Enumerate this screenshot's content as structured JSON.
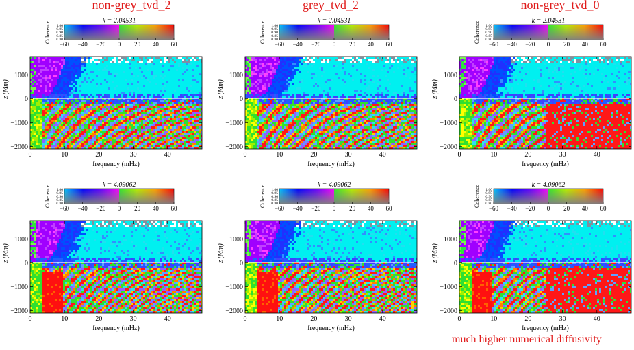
{
  "columns": [
    {
      "title": "non-grey_tvd_2"
    },
    {
      "title": "grey_tvd_2"
    },
    {
      "title": "non-grey_tvd_0"
    }
  ],
  "note": "much higher numerical diffusivity",
  "colors": {
    "annotation": "#e01b1b"
  },
  "chart_data": [
    {
      "type": "heatmap",
      "column": "non-grey_tvd_2",
      "title": "k = 2.04531",
      "k": "2.04531",
      "xlabel": "frequency (mHz)",
      "ylabel": "z (Mm)",
      "xlim": [
        0,
        50
      ],
      "ylim": [
        -2100,
        1750
      ],
      "xticks": [
        0,
        10,
        20,
        30,
        40
      ],
      "yticks": [
        1000,
        0,
        -1000,
        -2000
      ],
      "colorbar": {
        "label": "Coherence",
        "phase_ticks": [
          -60,
          -40,
          -20,
          0,
          20,
          40,
          60
        ],
        "coherence_ticks": [
          "1.00",
          "0.95",
          "0.90",
          "0.85",
          "0.80"
        ]
      }
    },
    {
      "type": "heatmap",
      "column": "grey_tvd_2",
      "title": "k = 2.04531",
      "k": "2.04531",
      "xlabel": "frequency (mHz)",
      "ylabel": "z (Mm)",
      "xlim": [
        0,
        50
      ],
      "ylim": [
        -2100,
        1750
      ],
      "xticks": [
        0,
        10,
        20,
        30,
        40
      ],
      "yticks": [
        1000,
        0,
        -1000,
        -2000
      ],
      "colorbar": {
        "label": "Coherence",
        "phase_ticks": [
          -60,
          -40,
          -20,
          0,
          20,
          40,
          60
        ],
        "coherence_ticks": [
          "1.00",
          "0.95",
          "0.90",
          "0.85",
          "0.80"
        ]
      }
    },
    {
      "type": "heatmap",
      "column": "non-grey_tvd_0",
      "title": "k = 2.04531",
      "k": "2.04531",
      "xlabel": "frequency (mHz)",
      "ylabel": "z (Mm)",
      "xlim": [
        0,
        50
      ],
      "ylim": [
        -2100,
        1750
      ],
      "xticks": [
        0,
        10,
        20,
        30,
        40
      ],
      "yticks": [
        1000,
        0,
        -1000,
        -2000
      ],
      "colorbar": {
        "label": "Coherence",
        "phase_ticks": [
          -60,
          -40,
          -20,
          0,
          20,
          40,
          60
        ],
        "coherence_ticks": [
          "1.00",
          "0.95",
          "0.90",
          "0.85",
          "0.80"
        ]
      }
    },
    {
      "type": "heatmap",
      "column": "non-grey_tvd_2",
      "title": "k = 4.09062",
      "k": "4.09062",
      "xlabel": "frequency (mHz)",
      "ylabel": "z (Mm)",
      "xlim": [
        0,
        50
      ],
      "ylim": [
        -2100,
        1750
      ],
      "xticks": [
        0,
        10,
        20,
        30,
        40
      ],
      "yticks": [
        1000,
        0,
        -1000,
        -2000
      ],
      "colorbar": {
        "label": "Coherence",
        "phase_ticks": [
          -60,
          -40,
          -20,
          0,
          20,
          40,
          60
        ],
        "coherence_ticks": [
          "1.00",
          "0.95",
          "0.90",
          "0.85",
          "0.80"
        ]
      }
    },
    {
      "type": "heatmap",
      "column": "grey_tvd_2",
      "title": "k = 4.09062",
      "k": "4.09062",
      "xlabel": "frequency (mHz)",
      "ylabel": "z (Mm)",
      "xlim": [
        0,
        50
      ],
      "ylim": [
        -2100,
        1750
      ],
      "xticks": [
        0,
        10,
        20,
        30,
        40
      ],
      "yticks": [
        1000,
        0,
        -1000,
        -2000
      ],
      "colorbar": {
        "label": "Coherence",
        "phase_ticks": [
          -60,
          -40,
          -20,
          0,
          20,
          40,
          60
        ],
        "coherence_ticks": [
          "1.00",
          "0.95",
          "0.90",
          "0.85",
          "0.80"
        ]
      }
    },
    {
      "type": "heatmap",
      "column": "non-grey_tvd_0",
      "title": "k = 4.09062",
      "k": "4.09062",
      "xlabel": "frequency (mHz)",
      "ylabel": "z (Mm)",
      "xlim": [
        0,
        50
      ],
      "ylim": [
        -2100,
        1750
      ],
      "xticks": [
        0,
        10,
        20,
        30,
        40
      ],
      "yticks": [
        1000,
        0,
        -1000,
        -2000
      ],
      "colorbar": {
        "label": "Coherence",
        "phase_ticks": [
          -60,
          -40,
          -20,
          0,
          20,
          40,
          60
        ],
        "coherence_ticks": [
          "1.00",
          "0.95",
          "0.90",
          "0.85",
          "0.80"
        ]
      }
    }
  ]
}
